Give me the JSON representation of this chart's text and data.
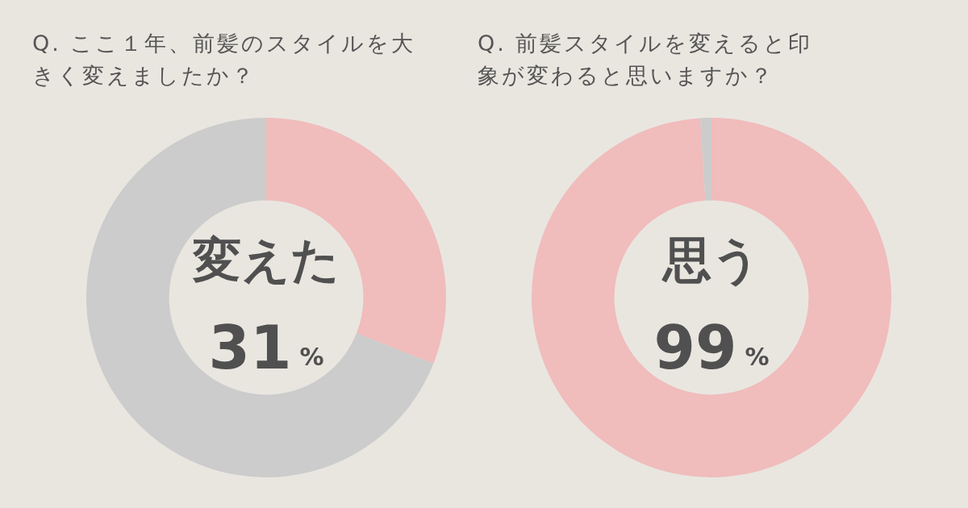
{
  "chart_data": [
    {
      "type": "donut",
      "title": "Q. ここ１年、前髪のスタイルを大きく変えましたか？",
      "categories": [
        "変えた",
        null
      ],
      "values": [
        31,
        69
      ],
      "colors": [
        "#f0bcbc",
        "#cccccc"
      ],
      "value_labels": [
        "31%",
        null
      ]
    },
    {
      "type": "donut",
      "title": "Q. 前髪スタイルを変えると印象が変わると思いますか？",
      "categories": [
        "思う",
        null
      ],
      "values": [
        99,
        1
      ],
      "colors": [
        "#f0bcbc",
        "#cccccc"
      ],
      "value_labels": [
        "99%",
        null
      ]
    }
  ]
}
